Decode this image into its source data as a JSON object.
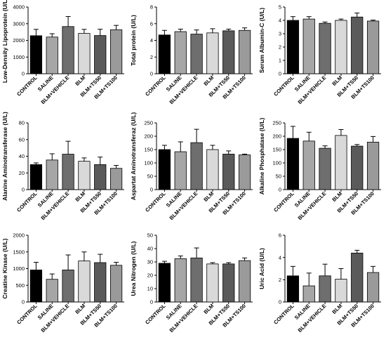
{
  "figure": {
    "categories": [
      "CONTROL",
      "SALINE",
      "BLM+VEHICLE",
      "BLM",
      "BLM+TS50",
      "BLM+TS100"
    ],
    "bar_colors": [
      "#000000",
      "#a6a6a6",
      "#6e6e6e",
      "#d9d9d9",
      "#5a5a5a",
      "#9a9a9a"
    ]
  },
  "chart_data": [
    {
      "type": "bar",
      "title": "",
      "xlabel": "",
      "ylabel": "Low-Density Lipoprotein (U/L)",
      "ylim": [
        0,
        4000
      ],
      "yticks": [
        0,
        1000,
        2000,
        3000,
        4000
      ],
      "categories": [
        "CONTROL",
        "SALINE",
        "BLM+VEHICLE",
        "BLM",
        "BLM+TS50",
        "BLM+TS100"
      ],
      "values": [
        2280,
        2200,
        2830,
        2420,
        2290,
        2640
      ],
      "errors": [
        380,
        200,
        600,
        240,
        380,
        260
      ]
    },
    {
      "type": "bar",
      "title": "",
      "xlabel": "",
      "ylabel": "Total protein (U/L)",
      "ylim": [
        0,
        8
      ],
      "yticks": [
        0,
        2,
        4,
        6,
        8
      ],
      "categories": [
        "CONTROL",
        "SALINE",
        "BLM+VEHICLE",
        "BLM",
        "BLM+TS50",
        "BLM+TS100"
      ],
      "values": [
        4.65,
        5.05,
        4.75,
        4.9,
        5.15,
        5.2
      ],
      "errors": [
        0.55,
        0.3,
        0.5,
        0.5,
        0.2,
        0.3
      ]
    },
    {
      "type": "bar",
      "title": "",
      "xlabel": "",
      "ylabel": "Serum Albumin-C (U/L)",
      "ylim": [
        0,
        5
      ],
      "yticks": [
        0,
        1,
        2,
        3,
        4,
        5
      ],
      "categories": [
        "CONTROL",
        "SALINE",
        "BLM+VEHICLE",
        "BLM",
        "BLM+TS50",
        "BLM+TS100"
      ],
      "values": [
        4.0,
        4.1,
        3.78,
        4.0,
        4.25,
        3.95
      ],
      "errors": [
        0.28,
        0.18,
        0.1,
        0.1,
        0.3,
        0.07
      ]
    },
    {
      "type": "bar",
      "title": "",
      "xlabel": "",
      "ylabel": "Alanine Aminotransferase (U/L)",
      "ylim": [
        0,
        80
      ],
      "yticks": [
        0,
        20,
        40,
        60,
        80
      ],
      "categories": [
        "CONTROL",
        "SALINE",
        "BLM+VEHICLE",
        "BLM",
        "BLM+TS50",
        "BLM+TS100"
      ],
      "values": [
        30,
        35.5,
        42.5,
        34,
        30,
        25.5
      ],
      "errors": [
        2,
        7.5,
        15.5,
        4,
        9,
        3.5
      ]
    },
    {
      "type": "bar",
      "title": "",
      "xlabel": "",
      "ylabel": "Aspartat Aminotransferaz (U/L)",
      "ylim": [
        0,
        250
      ],
      "yticks": [
        0,
        50,
        100,
        150,
        200,
        250
      ],
      "categories": [
        "CONTROL",
        "SALINE",
        "BLM+VEHICLE",
        "BLM",
        "BLM+TS50",
        "BLM+TS100"
      ],
      "values": [
        150,
        142,
        176,
        150,
        133,
        130
      ],
      "errors": [
        16,
        37,
        50,
        16,
        12,
        3
      ]
    },
    {
      "type": "bar",
      "title": "",
      "xlabel": "",
      "ylabel": "Alkaline Phosphatase (U/L)",
      "ylim": [
        0,
        250
      ],
      "yticks": [
        0,
        50,
        100,
        150,
        200,
        250
      ],
      "categories": [
        "CONTROL",
        "SALINE",
        "BLM+VEHICLE",
        "BLM",
        "BLM+TS50",
        "BLM+TS100"
      ],
      "values": [
        192,
        182,
        155,
        203,
        163,
        178
      ],
      "errors": [
        45,
        33,
        9,
        22,
        6,
        21
      ]
    },
    {
      "type": "bar",
      "title": "",
      "xlabel": "",
      "ylabel": "Creatine Kinase (U/L)",
      "ylim": [
        0,
        2000
      ],
      "yticks": [
        0,
        500,
        1000,
        1500,
        2000
      ],
      "categories": [
        "CONTROL",
        "SALINE",
        "BLM+VEHICLE",
        "BLM",
        "BLM+TS50",
        "BLM+TS100"
      ],
      "values": [
        960,
        680,
        960,
        1230,
        1180,
        1100
      ],
      "errors": [
        230,
        160,
        450,
        270,
        250,
        90
      ]
    },
    {
      "type": "bar",
      "title": "",
      "xlabel": "",
      "ylabel": "Urea Nitrogen (U/L)",
      "ylim": [
        0,
        50
      ],
      "yticks": [
        0,
        10,
        20,
        30,
        40,
        50
      ],
      "categories": [
        "CONTROL",
        "SALINE",
        "BLM+VEHICLE",
        "BLM",
        "BLM+TS50",
        "BLM+TS100"
      ],
      "values": [
        29,
        32.5,
        33,
        28.5,
        28.5,
        31
      ],
      "errors": [
        1.5,
        2,
        7.5,
        1,
        1,
        2
      ]
    },
    {
      "type": "bar",
      "title": "",
      "xlabel": "",
      "ylabel": "Uric Acid (U/L)",
      "ylim": [
        0,
        6
      ],
      "yticks": [
        0,
        2,
        4,
        6
      ],
      "categories": [
        "CONTROL",
        "SALINE",
        "BLM+VEHICLE",
        "BLM",
        "BLM+TS50",
        "BLM+TS100"
      ],
      "values": [
        2.35,
        1.45,
        2.35,
        2.05,
        4.4,
        2.65
      ],
      "errors": [
        0.85,
        1.15,
        1.05,
        0.95,
        0.25,
        0.55
      ]
    }
  ]
}
